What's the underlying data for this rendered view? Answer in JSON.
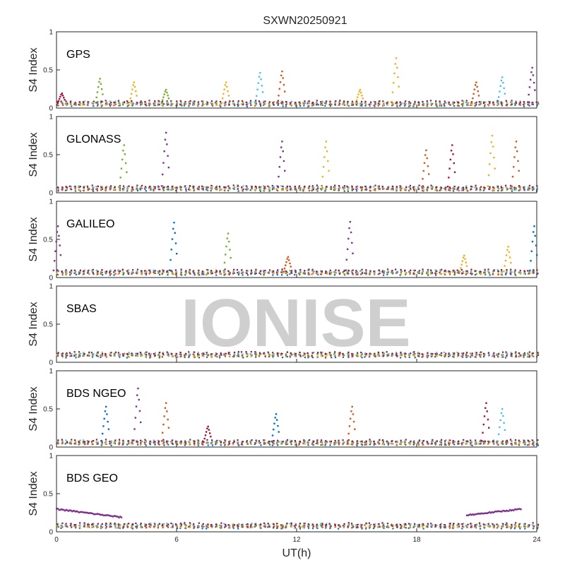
{
  "chart_data": {
    "type": "scatter",
    "title": "SXWN20250921",
    "xlabel": "UT(h)",
    "ylabel": "S4 Index",
    "xlim": [
      0,
      24
    ],
    "ylim": [
      0,
      1
    ],
    "xticks": [
      0,
      6,
      12,
      18,
      24
    ],
    "yticks": [
      0,
      0.5,
      1
    ],
    "xtick_labels": [
      "0",
      "6",
      "12",
      "18",
      "24"
    ],
    "ytick_labels": [
      "0",
      "0.5",
      "1"
    ],
    "watermark": "IONISE",
    "colors": [
      "#0072BD",
      "#D95319",
      "#EDB120",
      "#7E2F8E",
      "#77AC30",
      "#4DBEEE",
      "#A2142F"
    ],
    "panels": [
      {
        "label": "GPS",
        "baseline": 0.06,
        "spikes": [
          {
            "x": 0.3,
            "peak": 0.2,
            "color": "#A2142F"
          },
          {
            "x": 2.2,
            "peak": 0.4,
            "color": "#77AC30"
          },
          {
            "x": 3.9,
            "peak": 0.35,
            "color": "#EDB120"
          },
          {
            "x": 5.5,
            "peak": 0.25,
            "color": "#77AC30"
          },
          {
            "x": 8.5,
            "peak": 0.35,
            "color": "#EDB120"
          },
          {
            "x": 10.2,
            "peak": 0.48,
            "color": "#4DBEEE"
          },
          {
            "x": 11.3,
            "peak": 0.5,
            "color": "#D95319"
          },
          {
            "x": 15.2,
            "peak": 0.25,
            "color": "#EDB120"
          },
          {
            "x": 17.0,
            "peak": 0.68,
            "color": "#EDB120"
          },
          {
            "x": 21.0,
            "peak": 0.35,
            "color": "#D95319"
          },
          {
            "x": 22.3,
            "peak": 0.42,
            "color": "#4DBEEE"
          },
          {
            "x": 23.8,
            "peak": 0.55,
            "color": "#7E2F8E"
          }
        ]
      },
      {
        "label": "GLONASS",
        "baseline": 0.06,
        "spikes": [
          {
            "x": 3.4,
            "peak": 0.65,
            "color": "#77AC30"
          },
          {
            "x": 5.5,
            "peak": 0.82,
            "color": "#7E2F8E"
          },
          {
            "x": 11.3,
            "peak": 0.7,
            "color": "#7E2F8E"
          },
          {
            "x": 13.5,
            "peak": 0.7,
            "color": "#EDB120"
          },
          {
            "x": 18.5,
            "peak": 0.58,
            "color": "#D95319"
          },
          {
            "x": 19.8,
            "peak": 0.65,
            "color": "#A2142F"
          },
          {
            "x": 21.8,
            "peak": 0.78,
            "color": "#EDB120"
          },
          {
            "x": 23.0,
            "peak": 0.7,
            "color": "#D95319"
          }
        ]
      },
      {
        "label": "GALILEO",
        "baseline": 0.07,
        "spikes": [
          {
            "x": 0.1,
            "peak": 0.7,
            "color": "#7E2F8E"
          },
          {
            "x": 5.9,
            "peak": 0.75,
            "color": "#0072BD"
          },
          {
            "x": 8.6,
            "peak": 0.6,
            "color": "#77AC30"
          },
          {
            "x": 11.6,
            "peak": 0.28,
            "color": "#D95319"
          },
          {
            "x": 14.7,
            "peak": 0.76,
            "color": "#7E2F8E"
          },
          {
            "x": 20.4,
            "peak": 0.3,
            "color": "#EDB120"
          },
          {
            "x": 22.6,
            "peak": 0.42,
            "color": "#EDB120"
          },
          {
            "x": 23.9,
            "peak": 0.7,
            "color": "#0072BD"
          }
        ]
      },
      {
        "label": "SBAS",
        "baseline": 0.1,
        "spikes": []
      },
      {
        "label": "BDS NGEO",
        "baseline": 0.06,
        "spikes": [
          {
            "x": 2.5,
            "peak": 0.55,
            "color": "#0072BD"
          },
          {
            "x": 4.1,
            "peak": 0.8,
            "color": "#7E2F8E"
          },
          {
            "x": 5.5,
            "peak": 0.6,
            "color": "#D95319"
          },
          {
            "x": 7.6,
            "peak": 0.28,
            "color": "#A2142F"
          },
          {
            "x": 11.0,
            "peak": 0.45,
            "color": "#0072BD"
          },
          {
            "x": 14.8,
            "peak": 0.55,
            "color": "#D95319"
          },
          {
            "x": 21.5,
            "peak": 0.6,
            "color": "#A2142F"
          },
          {
            "x": 22.3,
            "peak": 0.52,
            "color": "#4DBEEE"
          }
        ]
      },
      {
        "label": "BDS GEO",
        "baseline": 0.08,
        "spikes": [],
        "segments": [
          {
            "x0": 0.0,
            "x1": 3.3,
            "y0": 0.3,
            "y1": 0.19,
            "color": "#7E2F8E"
          },
          {
            "x0": 20.5,
            "x1": 23.2,
            "y0": 0.22,
            "y1": 0.3,
            "color": "#7E2F8E"
          }
        ]
      }
    ]
  }
}
